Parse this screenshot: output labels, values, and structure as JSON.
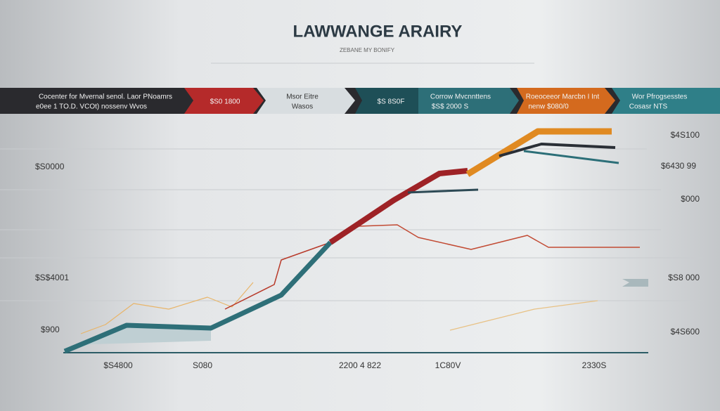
{
  "header": {
    "title": "LAWWANGE ARAIRY",
    "subtitle": "ZEBANE MY BONIFY"
  },
  "banner": [
    {
      "lines": [
        "Cocenter for Mvernal senol. Laor PNoamrs",
        "e0ee 1 TO.D. VCOt) nossenv Wvos"
      ]
    },
    {
      "lines": [
        "$S0 1800"
      ]
    },
    {
      "lines": [
        "Msor Eitre",
        "Wasos"
      ]
    },
    {
      "lines": [
        "$S 8S0F"
      ]
    },
    {
      "lines": [
        "Corrow Mvcnnttens",
        "$S$ 2000 S"
      ]
    },
    {
      "lines": [
        "Roeoceeor Marcbn I Int",
        "nenw $080/0"
      ]
    },
    {
      "lines": [
        "Wor Pfrogsesstes",
        "Cosasr NTS"
      ]
    }
  ],
  "left_labels": [
    "$S0000",
    "$S$4001",
    "$900"
  ],
  "right_labels": [
    "$4S100",
    "$6430 99",
    "$000",
    "$S8 000",
    "$4S600"
  ],
  "bottom_labels": [
    "$S4800",
    "S080",
    "2200 4 822",
    "1C80V",
    "2330S"
  ]
}
